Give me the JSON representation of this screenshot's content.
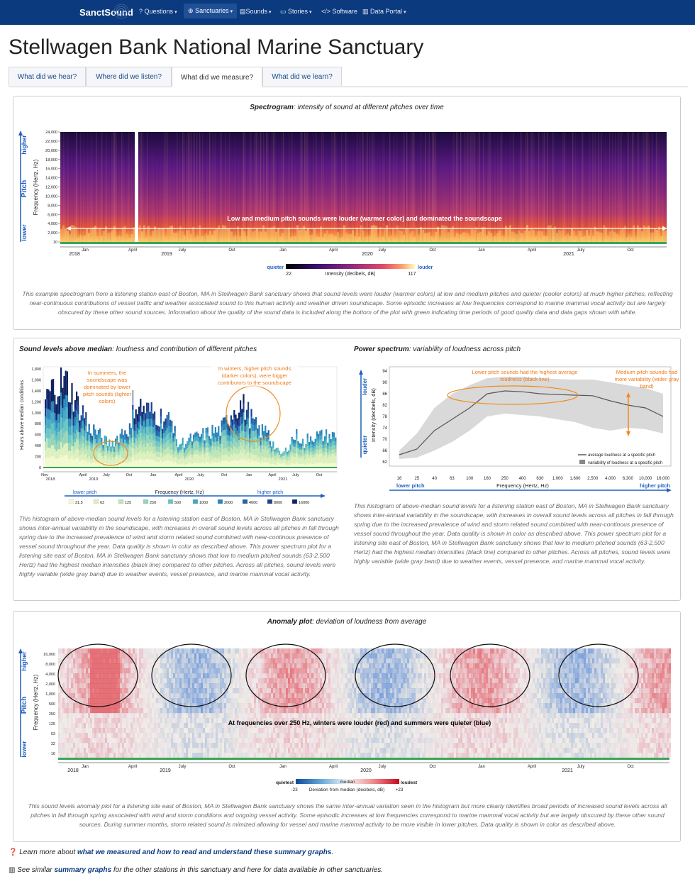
{
  "nav": {
    "brand": "SanctSound",
    "items": [
      {
        "label": "Questions",
        "icon": "question-circle-icon"
      },
      {
        "label": "Sanctuaries",
        "icon": "globe-icon"
      },
      {
        "label": "Sounds",
        "icon": "file-icon"
      },
      {
        "label": "Stories",
        "icon": "newspaper-icon"
      },
      {
        "label": "Software",
        "icon": "code-icon"
      },
      {
        "label": "Data Portal",
        "icon": "chart-icon"
      }
    ]
  },
  "page": {
    "title": "Stellwagen Bank National Marine Sanctuary"
  },
  "tabs": [
    {
      "label": "What did we hear?"
    },
    {
      "label": "Where did we listen?"
    },
    {
      "label": "What did we measure?"
    },
    {
      "label": "What did we learn?"
    }
  ],
  "spectrogram": {
    "title_bold": "Spectrogram",
    "title_rest": ": intensity of sound at different pitches over time",
    "y_axis_label": "Frequency (Hertz, Hz)",
    "pitch_label": "Pitch",
    "higher": "higher",
    "lower": "lower",
    "y_ticks": [
      "24,000",
      "22,000",
      "20,000",
      "18,000",
      "16,000",
      "14,000",
      "12,000",
      "10,000",
      "8,000",
      "6,000",
      "4,000",
      "2,000",
      "10"
    ],
    "annotation": "Low and medium pitch sounds were louder (warmer color) and dominated the soundscape",
    "months": [
      "Jan",
      "April",
      "July",
      "Oct",
      "Jan",
      "April",
      "July",
      "Oct",
      "Jan",
      "April",
      "July",
      "Oct"
    ],
    "years": [
      "2018",
      "2019",
      "2020",
      "2021"
    ],
    "colorbar": {
      "quieter": "quieter",
      "louder": "louder",
      "min": "22",
      "max": "117",
      "label": "Intensity  (decibels, dB)"
    },
    "caption": "This example spectrogram from a listening station east of Boston, MA in Stellwagen Bank sanctuary shows that sound levels were louder (warmer colors) at low and medium pitches and quieter (cooler colors) at much higher pitches, reflecting near-continuous contributions of vessel traffic and weather associated sound to this human activity and weather driven soundscape. Some episodic increases at low frequencies correspond to marine mammal vocal activity but are largely obscured by these other sound sources. Information about the quality of the sound data is included along the bottom of the plot with green indicating time periods of good quality data and data gaps shown with white."
  },
  "histogram": {
    "title_bold": "Sound levels above median",
    "title_rest": ": loudness and contribution of different pitches",
    "y_axis_label": "Hours above median conditions",
    "y_ticks": [
      "1,800",
      "1,600",
      "1,400",
      "1,200",
      "1,000",
      "800",
      "600",
      "400",
      "200",
      "0"
    ],
    "annotation_summer": "In summers, the soundscape was dominated by lower pitch sounds (lighter colors)",
    "annotation_winter": "In winters, higher pitch sounds (darker colors), were bigger contributors to the soundscape",
    "months": [
      "Nov",
      "April",
      "July",
      "Oct",
      "Jan",
      "April",
      "July",
      "Oct",
      "Jan",
      "April",
      "July",
      "Oct"
    ],
    "years": [
      "2018",
      "2019",
      "2020",
      "2021"
    ],
    "legend_lower": "lower pitch",
    "legend_higher": "higher pitch",
    "legend_label": "Frequency (Hertz, Hz)",
    "legend_items": [
      "31.5",
      "63",
      "125",
      "250",
      "500",
      "1000",
      "2000",
      "4000",
      "8000",
      "16000"
    ],
    "legend_colors": [
      "#f3f9cf",
      "#dcf0bd",
      "#bde5b6",
      "#94d4b9",
      "#6ac3c1",
      "#42a8c4",
      "#2b87bb",
      "#2165a6",
      "#203f90",
      "#0d2363"
    ],
    "caption": "This histogram of above-median sound levels for a listening station east of Boston, MA in Stellwagen Bank sanctuary shows inter-annual variability in the soundscape, with increases in overall sound levels across all pitches in fall through spring due to the increased prevalence of wind and storm related sound combined with near-continous presence of vessel sound throughout the year. Data quality is shown in color as described above. This power spectrum plot for a listening site east of Boston, MA in Stellwagen Bank sanctuary shows that low to medium pitched sounds (63-2,500 Hertz) had the highest median intensities (black line) compared to other pitches. Across all pitches, sound levels were highly variable (wide gray band) due to weather events, vessel presence, and marine mammal vocal activity."
  },
  "power_spectrum": {
    "title_bold": "Power spectrum",
    "title_rest": ": variability of loudness across pitch",
    "y_axis_label": "Intensity (decibels, dB)",
    "louder": "louder",
    "quieter": "quieter",
    "y_ticks": [
      "94",
      "90",
      "86",
      "82",
      "78",
      "74",
      "70",
      "66",
      "62"
    ],
    "x_ticks": [
      "16",
      "25",
      "40",
      "63",
      "100",
      "160",
      "250",
      "400",
      "630",
      "1,000",
      "1,600",
      "2,500",
      "4,000",
      "6,300",
      "10,000",
      "16,000"
    ],
    "x_label": "Frequency (Hertz, Hz)",
    "lower_pitch": "lower pitch",
    "higher_pitch": "higher pitch",
    "annotation_left": "Lower pitch sounds had the highest average loudness (black line)",
    "annotation_right": "Medium pitch sounds had more variability (wider gray band)",
    "legend_line": "average loudness at a specific pitch",
    "legend_band": "variability of loudness at a specific pitch",
    "caption": "This histogram of above-median sound levels for a listening station east of Boston, MA in Stellwagen Bank sanctuary shows inter-annual variability in the soundscape, with increases in overall sound levels across all pitches in fall through spring due to the increased prevalence of wind and storm related sound combined with near-continous presence of vessel sound throughout the year. Data quality is shown in color as described above. This power spectrum plot for a listening site east of Boston, MA in Stellwagen Bank sanctuary shows that low to medium pitched sounds (63-2,500 Hertz) had the highest median intensities (black line) compared to other pitches. Across all pitches, sound levels were highly variable (wide gray band) due to weather events, vessel presence, and marine mammal vocal activity."
  },
  "anomaly": {
    "title_bold": "Anomaly plot",
    "title_rest": ": deviation of loudness from average",
    "y_axis_label": "Frequency (Hertz, Hz)",
    "pitch_label": "Pitch",
    "higher": "higher",
    "lower": "lower",
    "y_ticks": [
      "16,000",
      "8,000",
      "4,000",
      "2,000",
      "1,000",
      "500",
      "250",
      "125",
      "63",
      "32",
      "16"
    ],
    "annotation": "At frequencies over 250 Hz, winters were louder (red) and summers were quieter (blue)",
    "months": [
      "Jan",
      "April",
      "July",
      "Oct",
      "Jan",
      "April",
      "July",
      "Oct",
      "Jan",
      "April",
      "July",
      "Oct"
    ],
    "years": [
      "2018",
      "2019",
      "2020",
      "2021"
    ],
    "colorbar": {
      "quietest": "quietest",
      "median": "median",
      "loudest": "loudest",
      "min": "-23",
      "max": "+23",
      "label": "Deviation from median (decibels, dB)"
    },
    "caption": "This sound levels anomaly plot for a listening site east of Boston, MA in Stellwagen Bank sanctuary shows the same inter-annual variation seen in the histogram but more clearly identifies broad periods of increased sound levels across all pitches in fall through spring associated with wind and storm conditions and ongoing vessel activity. Some episodic increases at low frequencies correspond to marine mammal vocal activity but are largely obscured by these other sound sources. During summer months, storm related sound is mimized allowing for vessel and marine mammal activity to be more visible in lower pitches. Data quality is shown in color as described above."
  },
  "footer": {
    "learn_pre": "Learn more about ",
    "learn_link": "what we measured and how to read and understand these summary graphs",
    "learn_post": ".",
    "similar_pre": "See similar ",
    "similar_link": "summary graphs",
    "similar_post": " for the other stations in this sanctuary and here for data available in other sanctuaries."
  }
}
